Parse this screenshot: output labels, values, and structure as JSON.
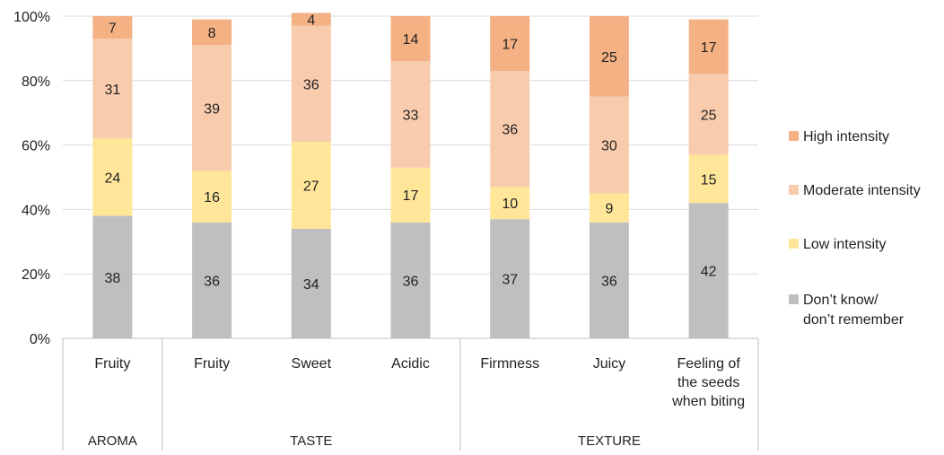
{
  "chart_data": {
    "type": "bar",
    "stacked": true,
    "percent_axis": true,
    "ylim": [
      0,
      100
    ],
    "y_ticks": [
      "0%",
      "20%",
      "40%",
      "60%",
      "80%",
      "100%"
    ],
    "categories": [
      "Fruity",
      "Fruity",
      "Sweet",
      "Acidic",
      "Firmness",
      "Juicy",
      "Feeling of the seeds when biting"
    ],
    "category_lines": [
      [
        "Fruity"
      ],
      [
        "Fruity"
      ],
      [
        "Sweet"
      ],
      [
        "Acidic"
      ],
      [
        "Firmness"
      ],
      [
        "Juicy"
      ],
      [
        "Feeling of",
        "the seeds",
        "when biting"
      ]
    ],
    "groups": [
      {
        "label": "AROMA",
        "count": 1
      },
      {
        "label": "TASTE",
        "count": 3
      },
      {
        "label": "TEXTURE",
        "count": 3
      }
    ],
    "series": [
      {
        "name": "Don’t know/ don’t remember",
        "legend_lines": [
          "Don’t know/",
          "don’t remember"
        ],
        "color": "#bfbfbf",
        "values": [
          38,
          36,
          34,
          36,
          37,
          36,
          42
        ]
      },
      {
        "name": "Low intensity",
        "legend_lines": [
          "Low intensity"
        ],
        "color": "#ffe699",
        "values": [
          24,
          16,
          27,
          17,
          10,
          9,
          15
        ]
      },
      {
        "name": "Moderate intensity",
        "legend_lines": [
          "Moderate intensity"
        ],
        "color": "#f8cbad",
        "values": [
          31,
          39,
          36,
          33,
          36,
          30,
          25
        ]
      },
      {
        "name": "High intensity",
        "legend_lines": [
          "High intensity"
        ],
        "color": "#f4b183",
        "values": [
          7,
          8,
          4,
          14,
          17,
          25,
          17
        ]
      }
    ],
    "legend": {
      "position": "right"
    },
    "grid": true,
    "title": "",
    "xlabel": "",
    "ylabel": ""
  }
}
